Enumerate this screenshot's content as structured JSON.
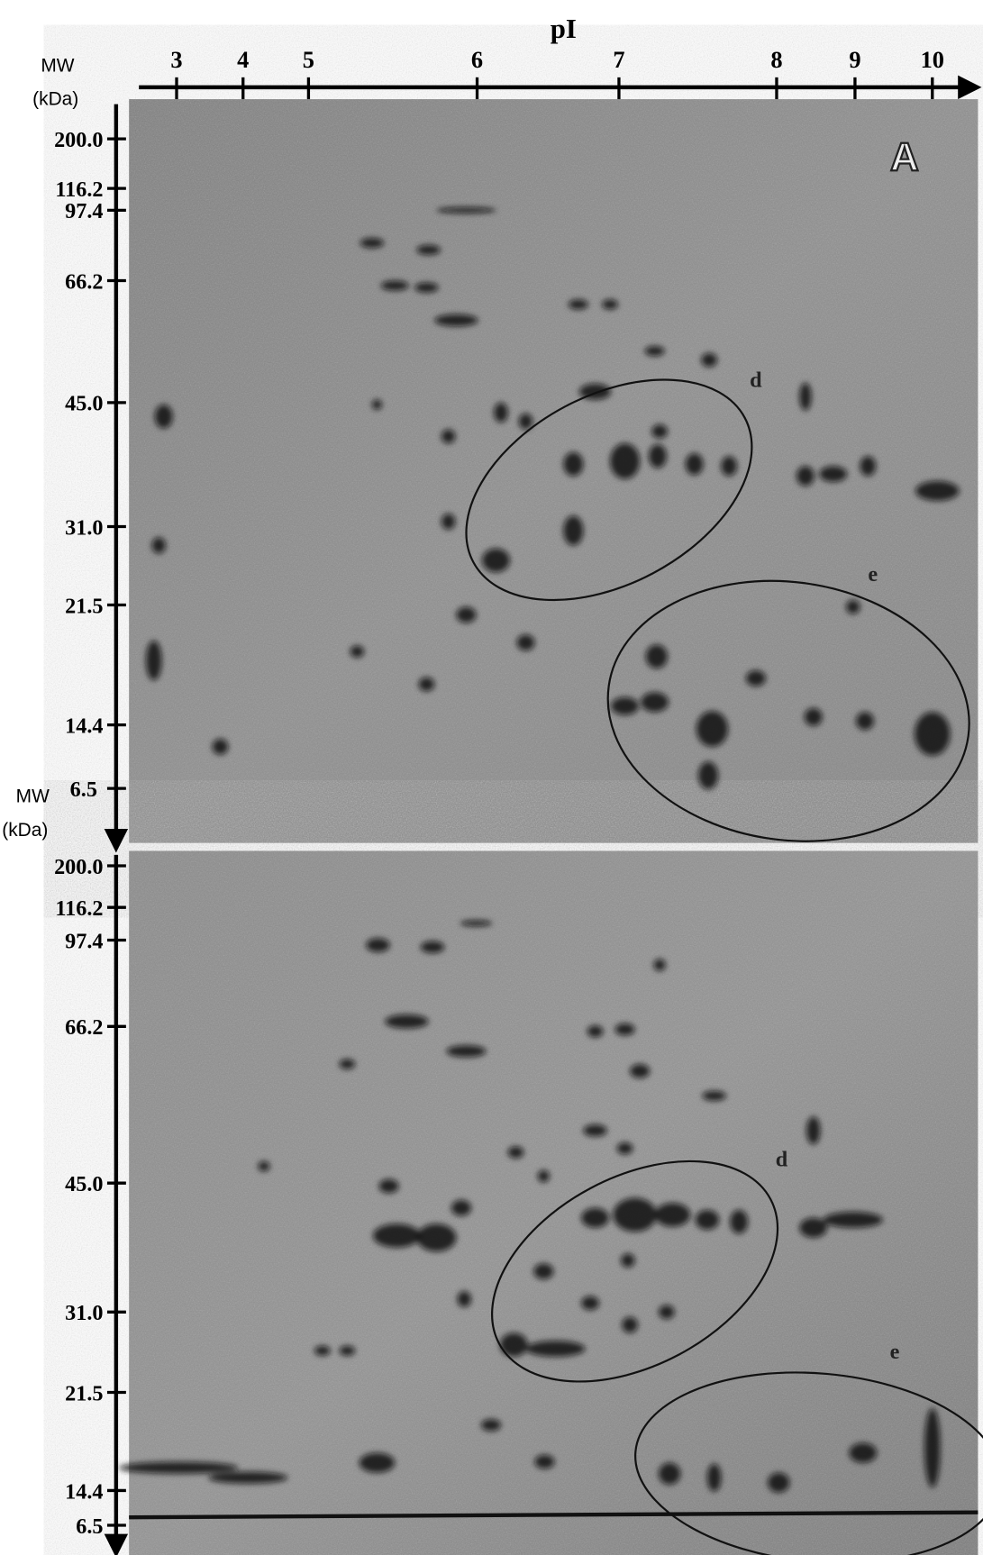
{
  "header": {
    "title": "pI",
    "mw_label": "MW",
    "mw_unit": "(kDa)"
  },
  "pi_ticks": [
    "3",
    "4",
    "5",
    "6",
    "7",
    "8",
    "9",
    "10"
  ],
  "panels": [
    {
      "label": "A",
      "mw_ticks": [
        "200.0",
        "116.2",
        "97.4",
        "66.2",
        "45.0",
        "31.0",
        "21.5",
        "14.4",
        "6.5"
      ],
      "axis_label": "MW",
      "axis_unit": "(kDa)",
      "regions": [
        "d",
        "e"
      ]
    },
    {
      "mw_ticks": [
        "200.0",
        "116.2",
        "97.4",
        "66.2",
        "45.0",
        "31.0",
        "21.5",
        "14.4",
        "6.5"
      ],
      "regions": [
        "d",
        "e"
      ]
    }
  ]
}
